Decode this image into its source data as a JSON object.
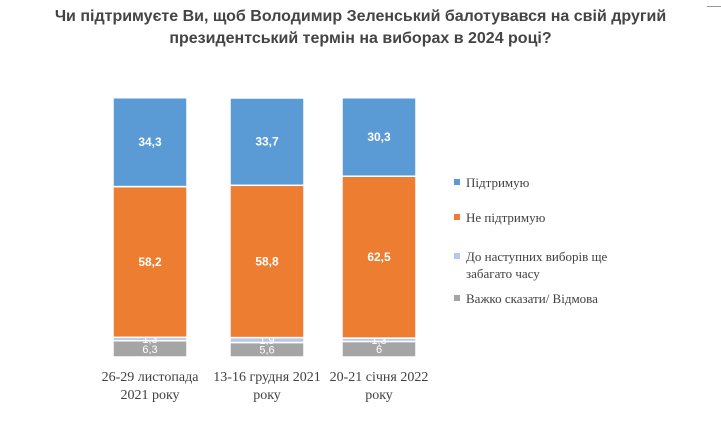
{
  "chart_data": {
    "type": "bar",
    "stacked": true,
    "title_line1": "Чи підтримуєте Ви, щоб Володимир Зеленський балотувався на свій другий",
    "title_line2": "президентський термін на виборах в 2024 році?",
    "categories": [
      [
        "26-29 листопада",
        "2021 року"
      ],
      [
        "13-16 грудня 2021",
        "року"
      ],
      [
        "20-21 січня 2022",
        "року"
      ]
    ],
    "ylim": [
      0,
      100
    ],
    "grid": false,
    "legend_position": "right",
    "series": [
      {
        "name": "Важко сказати/ Відмова",
        "color": "#a5a5a5",
        "values": [
          6.3,
          5.6,
          6.0
        ]
      },
      {
        "name": "До наступних виборів ще забагато часу",
        "color": "#b7c9ea",
        "values": [
          1.3,
          1.9,
          1.3
        ]
      },
      {
        "name": "Не підтримую",
        "color": "#ed7d31",
        "values": [
          58.2,
          58.8,
          62.5
        ]
      },
      {
        "name": "Підтримую",
        "color": "#5b9bd5",
        "values": [
          34.3,
          33.7,
          30.3
        ]
      }
    ],
    "legend": [
      {
        "lines": [
          "Підтримую"
        ],
        "color": "#5b9bd5"
      },
      {
        "lines": [
          "Не підтримую"
        ],
        "color": "#ed7d31"
      },
      {
        "lines": [
          "До наступних виборів ще",
          "забагато часу"
        ],
        "color": "#b7c9ea"
      },
      {
        "lines": [
          "Важко сказати/ Відмова"
        ],
        "color": "#a5a5a5"
      }
    ]
  }
}
